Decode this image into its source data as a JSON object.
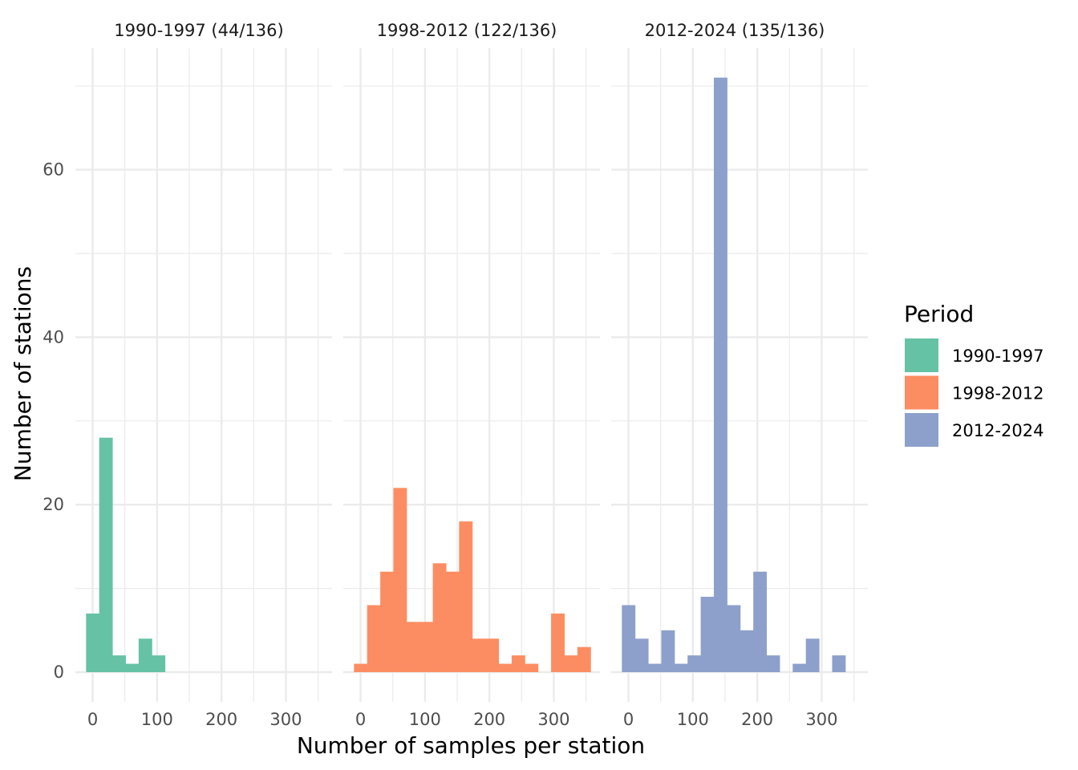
{
  "chart_data": {
    "type": "bar",
    "subtype": "faceted histogram",
    "title": "",
    "xlabel": "Number of samples per station",
    "ylabel": "Number of stations",
    "xlim": [
      -30,
      355
    ],
    "ylim": [
      -6,
      73
    ],
    "x_ticks": [
      0,
      100,
      200,
      300
    ],
    "y_ticks": [
      0,
      20,
      40,
      60
    ],
    "bin_width": 20.4,
    "grid": true,
    "legend": {
      "title": "Period",
      "position": "right",
      "items": [
        {
          "label": "1990-1997",
          "color": "#66C2A5"
        },
        {
          "label": "1998-2012",
          "color": "#FC8D62"
        },
        {
          "label": "2012-2024",
          "color": "#8DA0CB"
        }
      ]
    },
    "panels": [
      {
        "strip": "1990-1997 (44/136)",
        "period": "1990-1997",
        "color": "#66C2A5",
        "bins": [
          {
            "x": 0,
            "count": 7
          },
          {
            "x": 20.4,
            "count": 28
          },
          {
            "x": 40.8,
            "count": 2
          },
          {
            "x": 61.2,
            "count": 1
          },
          {
            "x": 81.6,
            "count": 4
          },
          {
            "x": 102,
            "count": 2
          }
        ]
      },
      {
        "strip": "1998-2012 (122/136)",
        "period": "1998-2012",
        "color": "#FC8D62",
        "bins": [
          {
            "x": 0,
            "count": 1
          },
          {
            "x": 20.4,
            "count": 8
          },
          {
            "x": 40.8,
            "count": 12
          },
          {
            "x": 61.2,
            "count": 22
          },
          {
            "x": 81.6,
            "count": 6
          },
          {
            "x": 102,
            "count": 6
          },
          {
            "x": 122.4,
            "count": 13
          },
          {
            "x": 142.8,
            "count": 12
          },
          {
            "x": 163.2,
            "count": 18
          },
          {
            "x": 183.6,
            "count": 4
          },
          {
            "x": 204,
            "count": 4
          },
          {
            "x": 224.4,
            "count": 1
          },
          {
            "x": 244.8,
            "count": 2
          },
          {
            "x": 265.2,
            "count": 1
          },
          {
            "x": 306,
            "count": 7
          },
          {
            "x": 326.4,
            "count": 2
          },
          {
            "x": 346.8,
            "count": 3
          }
        ]
      },
      {
        "strip": "2012-2024 (135/136)",
        "period": "2012-2024",
        "color": "#8DA0CB",
        "bins": [
          {
            "x": 0,
            "count": 8
          },
          {
            "x": 20.4,
            "count": 4
          },
          {
            "x": 40.8,
            "count": 1
          },
          {
            "x": 61.2,
            "count": 5
          },
          {
            "x": 81.6,
            "count": 1
          },
          {
            "x": 102,
            "count": 2
          },
          {
            "x": 122.4,
            "count": 9
          },
          {
            "x": 142.8,
            "count": 71
          },
          {
            "x": 163.2,
            "count": 8
          },
          {
            "x": 183.6,
            "count": 5
          },
          {
            "x": 204,
            "count": 12
          },
          {
            "x": 224.4,
            "count": 2
          },
          {
            "x": 265.2,
            "count": 1
          },
          {
            "x": 285.6,
            "count": 4
          },
          {
            "x": 326.4,
            "count": 2
          }
        ]
      }
    ]
  }
}
